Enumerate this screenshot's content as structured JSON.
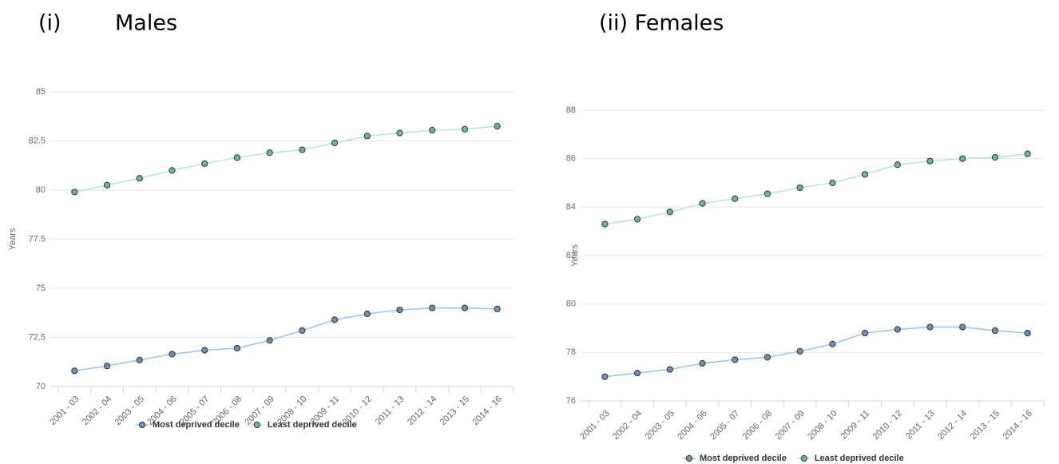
{
  "chart_data": [
    {
      "type": "line",
      "label": "(i)",
      "title": "Males",
      "y_label": "Years",
      "categories": [
        "2001 - 03",
        "2002 - 04",
        "2003 - 05",
        "2004 - 06",
        "2005 - 07",
        "2006 - 08",
        "2007 - 09",
        "2008 - 10",
        "2009 - 11",
        "2010 - 12",
        "2011 - 13",
        "2012 - 14",
        "2013 - 15",
        "2014 - 16"
      ],
      "series": [
        {
          "name": "Most deprived decile",
          "color": "#9ec3e6",
          "marker_color": "#6f8fb5",
          "values": [
            70.8,
            71.05,
            71.35,
            71.65,
            71.85,
            71.95,
            72.35,
            72.85,
            73.4,
            73.7,
            73.9,
            74.0,
            74.0,
            73.95
          ]
        },
        {
          "name": "Least deprived decile",
          "color": "#b5e3ea",
          "marker_color": "#6cb4a6",
          "values": [
            79.9,
            80.25,
            80.6,
            81.0,
            81.35,
            81.65,
            81.9,
            82.05,
            82.4,
            82.75,
            82.9,
            83.05,
            83.1,
            83.25
          ]
        }
      ],
      "ylim": [
        70,
        85
      ],
      "yticks": [
        70,
        72.5,
        75,
        77.5,
        80,
        82.5,
        85
      ],
      "grid": true
    },
    {
      "type": "line",
      "title": "(ii) Females",
      "y_label": "Years",
      "categories": [
        "2001 - 03",
        "2002 - 04",
        "2003 - 05",
        "2004 - 06",
        "2005 - 07",
        "2006 - 08",
        "2007 - 09",
        "2008 - 10",
        "2009 - 11",
        "2010 - 12",
        "2011 - 13",
        "2012 - 14",
        "2013 - 15",
        "2014 - 16"
      ],
      "series": [
        {
          "name": "Most deprived decile",
          "color": "#9ec3e6",
          "marker_color": "#6f8fb5",
          "values": [
            77.0,
            77.15,
            77.3,
            77.55,
            77.7,
            77.8,
            78.05,
            78.35,
            78.8,
            78.95,
            79.05,
            79.05,
            78.9,
            78.8
          ]
        },
        {
          "name": "Least deprived decile",
          "color": "#b5e3ea",
          "marker_color": "#6cb4a6",
          "values": [
            83.3,
            83.5,
            83.8,
            84.15,
            84.35,
            84.55,
            84.8,
            85.0,
            85.35,
            85.75,
            85.9,
            86.0,
            86.05,
            86.2
          ]
        }
      ],
      "ylim": [
        76,
        88
      ],
      "yticks": [
        76,
        78,
        80,
        82,
        84,
        86,
        88
      ],
      "grid": true
    }
  ]
}
